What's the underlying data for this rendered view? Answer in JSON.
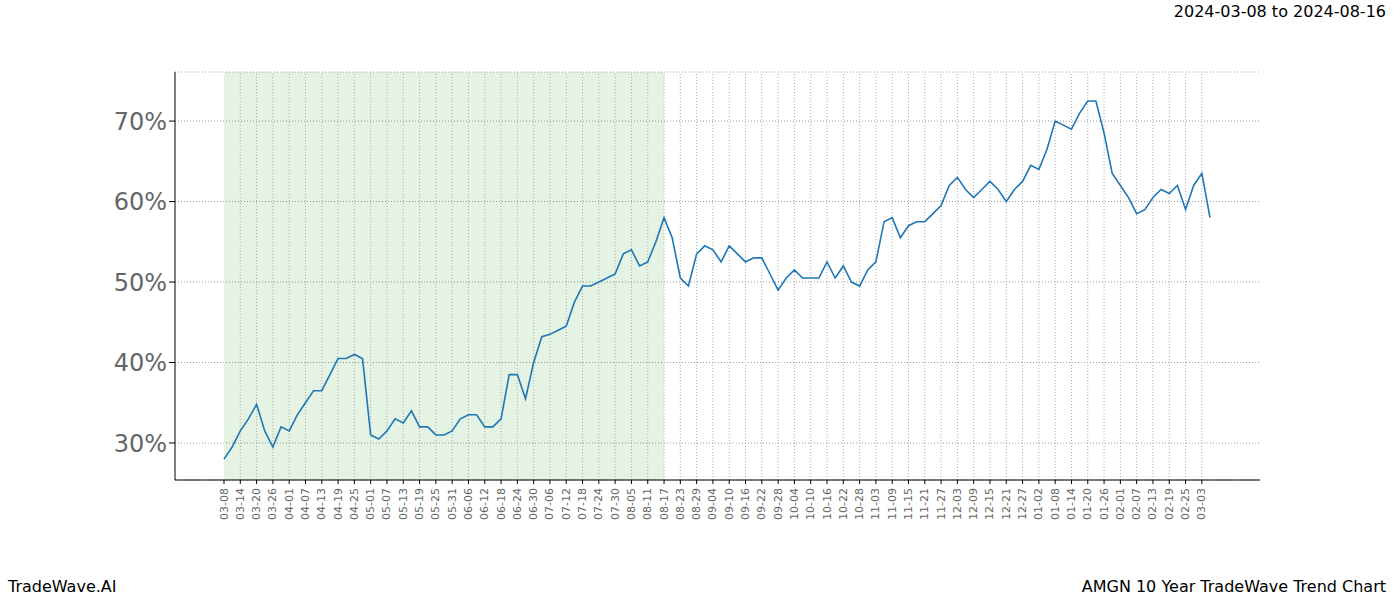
{
  "chart_data": {
    "type": "line",
    "title": "2024-03-08 to 2024-08-16",
    "footer_left": "TradeWave.AI",
    "footer_right": "AMGN 10 Year TradeWave Trend Chart",
    "categories": [
      "03-08",
      null,
      "03-14",
      null,
      "03-20",
      null,
      "03-26",
      null,
      "04-01",
      null,
      "04-07",
      null,
      "04-13",
      null,
      "04-19",
      null,
      "04-25",
      null,
      "05-01",
      null,
      "05-07",
      null,
      "05-13",
      null,
      "05-19",
      null,
      "05-25",
      null,
      "05-31",
      null,
      "06-06",
      null,
      "06-12",
      null,
      "06-18",
      null,
      "06-24",
      null,
      "06-30",
      null,
      "07-06",
      null,
      "07-12",
      null,
      "07-18",
      null,
      "07-24",
      null,
      "07-30",
      null,
      "08-05",
      null,
      "08-11",
      null,
      "08-17",
      null,
      "08-23",
      null,
      "08-29",
      null,
      "09-04",
      null,
      "09-10",
      null,
      "09-16",
      null,
      "09-22",
      null,
      "09-28",
      null,
      "10-04",
      null,
      "10-10",
      null,
      "10-16",
      null,
      "10-22",
      null,
      "10-28",
      null,
      "11-03",
      null,
      "11-09",
      null,
      "11-15",
      null,
      "11-21",
      null,
      "11-27",
      null,
      "12-03",
      null,
      "12-09",
      null,
      "12-15",
      null,
      "12-21",
      null,
      "12-27",
      null,
      "01-02",
      null,
      "01-08",
      null,
      "01-14",
      null,
      "01-20",
      null,
      "01-26",
      null,
      "02-01",
      null,
      "02-07",
      null,
      "02-13",
      null,
      "02-19",
      null,
      "02-25",
      null,
      "03-03",
      null
    ],
    "values": [
      28,
      29.5,
      31.5,
      33,
      34.8,
      31.5,
      29.5,
      32,
      31.5,
      33.5,
      35,
      36.5,
      36.5,
      38.5,
      40.5,
      40.5,
      41,
      40.5,
      31,
      30.5,
      31.5,
      33,
      32.5,
      34,
      32,
      32,
      31,
      31,
      31.5,
      33,
      33.5,
      33.5,
      32,
      32,
      33,
      38.5,
      38.5,
      35.5,
      40,
      43.2,
      43.5,
      44,
      44.5,
      47.5,
      49.5,
      49.5,
      50,
      50.5,
      51,
      53.5,
      54,
      52,
      52.5,
      55,
      58,
      55.5,
      50.5,
      49.5,
      53.5,
      54.5,
      54,
      52.5,
      54.5,
      53.5,
      52.5,
      53,
      53,
      51,
      49,
      50.5,
      51.5,
      50.5,
      50.5,
      50.5,
      52.5,
      50.5,
      52,
      50,
      49.5,
      51.5,
      52.5,
      57.5,
      58,
      55.5,
      57,
      57.5,
      57.5,
      58.5,
      59.5,
      62,
      63,
      61.5,
      60.5,
      61.5,
      62.5,
      61.5,
      60,
      61.5,
      62.5,
      64.5,
      64,
      66.5,
      70,
      69.5,
      69,
      71,
      72.5,
      72.5,
      68.5,
      63.5,
      62,
      60.5,
      58.5,
      59,
      60.5,
      61.5,
      61,
      62,
      59,
      62,
      63.5,
      58
    ],
    "color": "#1f77b4",
    "highlight": {
      "from": "03-08",
      "to": "08-17"
    },
    "ylim": [
      25.4,
      76.1
    ],
    "yticks": [
      {
        "value": 30,
        "label": "30%"
      },
      {
        "value": 40,
        "label": "40%"
      },
      {
        "value": 50,
        "label": "50%"
      },
      {
        "value": 60,
        "label": "60%"
      },
      {
        "value": 70,
        "label": "70%"
      }
    ],
    "grid": true
  }
}
